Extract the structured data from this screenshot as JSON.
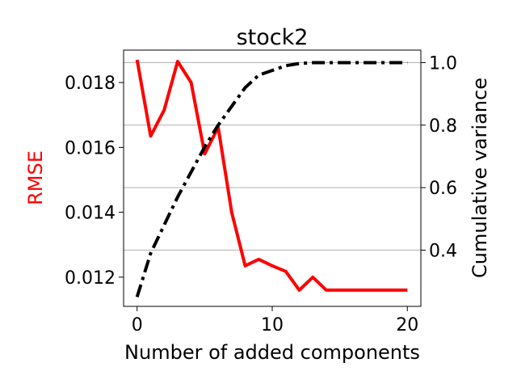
{
  "chart_data": {
    "type": "line",
    "title": "stock2",
    "xlabel": "Number of added components",
    "ylabel_left": "RMSE",
    "ylabel_right": "Cumulative variance",
    "xlim": [
      -1,
      21
    ],
    "ylim_left": [
      0.0111,
      0.019
    ],
    "ylim_right": [
      0.22,
      1.04
    ],
    "x_ticks": [
      "0",
      "10",
      "20"
    ],
    "y_left_ticks": [
      "0.012",
      "0.014",
      "0.016",
      "0.018"
    ],
    "y_right_ticks": [
      "0.4",
      "0.6",
      "0.8",
      "1.0"
    ],
    "grid": "right-axis horizontal lines",
    "x": [
      0,
      1,
      2,
      3,
      4,
      5,
      6,
      7,
      8,
      9,
      10,
      11,
      12,
      13,
      14,
      15,
      16,
      17,
      18,
      19,
      20
    ],
    "series": [
      {
        "axis": "left",
        "color": "#ff0000",
        "style": "solid",
        "values": [
          0.0187,
          0.01635,
          0.01715,
          0.01865,
          0.018,
          0.0158,
          0.01662,
          0.014,
          0.01235,
          0.01255,
          0.01235,
          0.01218,
          0.0116,
          0.012,
          0.0116,
          0.0116,
          0.0116,
          0.0116,
          0.0116,
          0.0116,
          0.0116
        ]
      },
      {
        "axis": "right",
        "color": "#000000",
        "style": "dash-dot",
        "values": [
          0.25,
          0.39,
          0.48,
          0.57,
          0.65,
          0.73,
          0.8,
          0.86,
          0.92,
          0.96,
          0.975,
          0.99,
          0.997,
          1.0,
          1.0,
          1.0,
          1.0,
          1.0,
          1.0,
          1.0,
          1.0
        ]
      }
    ]
  }
}
